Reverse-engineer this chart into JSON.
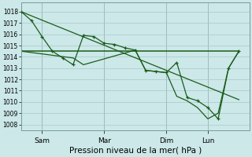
{
  "background_color": "#cce8e8",
  "grid_color": "#aac8c8",
  "line_color": "#1a5c1a",
  "title": "Pression niveau de la mer( hPa )",
  "ylabel_ticks": [
    1008,
    1009,
    1010,
    1011,
    1012,
    1013,
    1014,
    1015,
    1016,
    1017,
    1018
  ],
  "ylim": [
    1007.5,
    1018.8
  ],
  "day_labels": [
    "Sam",
    "Mar",
    "Dim",
    "Lun"
  ],
  "day_positions": [
    1,
    4,
    7,
    9
  ],
  "vline_positions": [
    1,
    4,
    7,
    9
  ],
  "xlim": [
    0,
    11
  ],
  "series1_x": [
    0,
    0.5,
    1.0,
    1.5,
    2.0,
    2.5,
    3.0,
    3.5,
    4.0,
    4.5,
    5.0,
    5.5,
    6.0,
    6.5,
    7.0,
    7.5,
    8.0,
    8.5,
    9.0,
    9.5,
    10.0,
    10.5
  ],
  "series1_y": [
    1018.0,
    1017.2,
    1015.8,
    1014.5,
    1013.9,
    1013.3,
    1015.9,
    1015.8,
    1015.2,
    1015.1,
    1014.8,
    1014.6,
    1012.8,
    1012.7,
    1012.6,
    1013.5,
    1010.4,
    1010.1,
    1009.5,
    1008.5,
    1013.0,
    1014.5
  ],
  "series2_x": [
    0,
    10.5
  ],
  "series2_y": [
    1014.5,
    1014.5
  ],
  "series3_x": [
    0,
    10.5
  ],
  "series3_y": [
    1018.0,
    1010.2
  ],
  "series4_x": [
    0,
    2.5,
    3.0,
    5.5,
    6.0,
    6.5,
    7.0,
    7.5,
    8.0,
    8.5,
    9.0,
    9.5,
    10.0,
    10.5
  ],
  "series4_y": [
    1014.5,
    1013.9,
    1013.3,
    1014.6,
    1012.8,
    1012.7,
    1012.6,
    1010.5,
    1010.1,
    1009.5,
    1008.5,
    1009.0,
    1013.0,
    1014.5
  ]
}
